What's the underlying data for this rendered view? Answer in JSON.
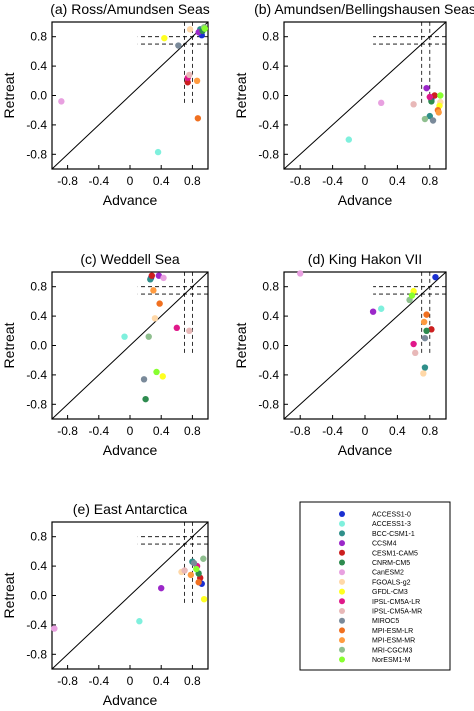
{
  "axis_common": {
    "xlabel": "Advance",
    "ylabel": "Retreat",
    "xlim": [
      -1,
      1
    ],
    "ylim": [
      -1,
      1
    ],
    "x_ticks": [
      "-0.8",
      "-0.4",
      "0",
      "0.4",
      "0.8"
    ],
    "y_ticks": [
      "0.8",
      "0.4",
      "0.0",
      "-0.4",
      "-0.8"
    ],
    "diagonal": true,
    "threshold_dashed_lines": [
      0.7,
      0.8
    ]
  },
  "legend": {
    "placement": "bottom-right",
    "entries": [
      {
        "name": "ACCESS1-0",
        "color": "#1a2fd1"
      },
      {
        "name": "ACCESS1-3",
        "color": "#7ff0dd"
      },
      {
        "name": "BCC-CSM1-1",
        "color": "#2f8f8a"
      },
      {
        "name": "CCSM4",
        "color": "#9b27c9"
      },
      {
        "name": "CESM1-CAM5",
        "color": "#cc1f1f"
      },
      {
        "name": "CNRM-CM5",
        "color": "#2e8b4f"
      },
      {
        "name": "CanESM2",
        "color": "#e8a0e0"
      },
      {
        "name": "FGOALS-g2",
        "color": "#ffd8a8"
      },
      {
        "name": "GFDL-CM3",
        "color": "#ffff20"
      },
      {
        "name": "IPSL-CM5A-LR",
        "color": "#e0188a"
      },
      {
        "name": "IPSL-CM5A-MR",
        "color": "#e8b8b8"
      },
      {
        "name": "MIROC5",
        "color": "#7a8a9a"
      },
      {
        "name": "MPI-ESM-LR",
        "color": "#f07020"
      },
      {
        "name": "MPI-ESM-MR",
        "color": "#ff9b40"
      },
      {
        "name": "MRI-CGCM3",
        "color": "#8fbf8f"
      },
      {
        "name": "NorESM1-M",
        "color": "#88ff30"
      }
    ]
  },
  "chart_data": [
    {
      "type": "scatter",
      "title": "(a) Ross/Amundsen Seas",
      "xlabel": "Advance",
      "ylabel": "Retreat",
      "xlim": [
        -1,
        1
      ],
      "ylim": [
        -1,
        1
      ],
      "points": [
        {
          "model": "ACCESS1-0",
          "x": 0.92,
          "y": 0.82
        },
        {
          "model": "ACCESS1-3",
          "x": 0.36,
          "y": -0.77
        },
        {
          "model": "BCC-CSM1-1",
          "x": 0.9,
          "y": 0.9
        },
        {
          "model": "CCSM4",
          "x": 0.88,
          "y": 0.86
        },
        {
          "model": "CESM1-CAM5",
          "x": 0.74,
          "y": 0.18
        },
        {
          "model": "CNRM-CM5",
          "x": 0.93,
          "y": 0.88
        },
        {
          "model": "CanESM2",
          "x": -0.88,
          "y": -0.08
        },
        {
          "model": "FGOALS-g2",
          "x": 0.77,
          "y": 0.9
        },
        {
          "model": "GFDL-CM3",
          "x": 0.44,
          "y": 0.78
        },
        {
          "model": "IPSL-CM5A-LR",
          "x": 0.74,
          "y": 0.24
        },
        {
          "model": "IPSL-CM5A-MR",
          "x": 0.76,
          "y": 0.28
        },
        {
          "model": "MIROC5",
          "x": 0.62,
          "y": 0.68
        },
        {
          "model": "MPI-ESM-LR",
          "x": 0.87,
          "y": -0.31
        },
        {
          "model": "MPI-ESM-MR",
          "x": 0.86,
          "y": 0.2
        },
        {
          "model": "MRI-CGCM3",
          "x": 0.95,
          "y": 0.93
        },
        {
          "model": "NorESM1-M",
          "x": 0.96,
          "y": 0.91
        }
      ]
    },
    {
      "type": "scatter",
      "title": "(b) Amundsen/Bellingshausen Seas",
      "xlabel": "Advance",
      "ylabel": "Retreat",
      "xlim": [
        -1,
        1
      ],
      "ylim": [
        -1,
        1
      ],
      "points": [
        {
          "model": "ACCESS1-0",
          "x": 0.82,
          "y": -0.06
        },
        {
          "model": "ACCESS1-3",
          "x": -0.2,
          "y": -0.6
        },
        {
          "model": "BCC-CSM1-1",
          "x": 0.8,
          "y": -0.28
        },
        {
          "model": "CCSM4",
          "x": 0.76,
          "y": 0.1
        },
        {
          "model": "CESM1-CAM5",
          "x": 0.86,
          "y": 0.0
        },
        {
          "model": "CNRM-CM5",
          "x": 0.82,
          "y": -0.08
        },
        {
          "model": "CanESM2",
          "x": 0.2,
          "y": -0.1
        },
        {
          "model": "FGOALS-g2",
          "x": 0.93,
          "y": -0.09
        },
        {
          "model": "GFDL-CM3",
          "x": 0.92,
          "y": -0.14
        },
        {
          "model": "IPSL-CM5A-LR",
          "x": 0.8,
          "y": -0.02
        },
        {
          "model": "IPSL-CM5A-MR",
          "x": 0.6,
          "y": -0.12
        },
        {
          "model": "MIROC5",
          "x": 0.84,
          "y": -0.34
        },
        {
          "model": "MPI-ESM-LR",
          "x": 0.9,
          "y": -0.2
        },
        {
          "model": "MPI-ESM-MR",
          "x": 0.91,
          "y": -0.23
        },
        {
          "model": "MRI-CGCM3",
          "x": 0.74,
          "y": -0.32
        },
        {
          "model": "NorESM1-M",
          "x": 0.93,
          "y": 0.0
        }
      ]
    },
    {
      "type": "scatter",
      "title": "(c) Weddell Sea",
      "xlabel": "Advance",
      "ylabel": "Retreat",
      "xlim": [
        -1,
        1
      ],
      "ylim": [
        -1,
        1
      ],
      "points": [
        {
          "model": "ACCESS1-0",
          "x": 0.27,
          "y": 0.92
        },
        {
          "model": "ACCESS1-3",
          "x": -0.07,
          "y": 0.12
        },
        {
          "model": "BCC-CSM1-1",
          "x": 0.26,
          "y": 0.9
        },
        {
          "model": "CCSM4",
          "x": 0.37,
          "y": 0.95
        },
        {
          "model": "CESM1-CAM5",
          "x": 0.28,
          "y": 0.95
        },
        {
          "model": "CNRM-CM5",
          "x": 0.2,
          "y": -0.73
        },
        {
          "model": "CanESM2",
          "x": 0.43,
          "y": 0.92
        },
        {
          "model": "FGOALS-g2",
          "x": 0.32,
          "y": 0.37
        },
        {
          "model": "GFDL-CM3",
          "x": 0.42,
          "y": -0.42
        },
        {
          "model": "IPSL-CM5A-LR",
          "x": 0.6,
          "y": 0.24
        },
        {
          "model": "IPSL-CM5A-MR",
          "x": 0.76,
          "y": 0.2
        },
        {
          "model": "MIROC5",
          "x": 0.18,
          "y": -0.46
        },
        {
          "model": "MPI-ESM-LR",
          "x": 0.38,
          "y": 0.57
        },
        {
          "model": "MPI-ESM-MR",
          "x": 0.3,
          "y": 0.75
        },
        {
          "model": "MRI-CGCM3",
          "x": 0.24,
          "y": 0.12
        },
        {
          "model": "NorESM1-M",
          "x": 0.34,
          "y": -0.36
        }
      ]
    },
    {
      "type": "scatter",
      "title": "(d) King Hakon VII",
      "xlabel": "Advance",
      "ylabel": "Retreat",
      "xlim": [
        -1,
        1
      ],
      "ylim": [
        -1,
        1
      ],
      "points": [
        {
          "model": "ACCESS1-0",
          "x": 0.87,
          "y": 0.93
        },
        {
          "model": "ACCESS1-3",
          "x": 0.2,
          "y": 0.5
        },
        {
          "model": "BCC-CSM1-1",
          "x": 0.74,
          "y": -0.3
        },
        {
          "model": "CCSM4",
          "x": 0.1,
          "y": 0.46
        },
        {
          "model": "CESM1-CAM5",
          "x": 0.82,
          "y": 0.22
        },
        {
          "model": "CNRM-CM5",
          "x": 0.76,
          "y": 0.2
        },
        {
          "model": "CanESM2",
          "x": -0.8,
          "y": 0.98
        },
        {
          "model": "FGOALS-g2",
          "x": 0.72,
          "y": -0.38
        },
        {
          "model": "GFDL-CM3",
          "x": 0.6,
          "y": 0.74
        },
        {
          "model": "IPSL-CM5A-LR",
          "x": 0.6,
          "y": 0.02
        },
        {
          "model": "IPSL-CM5A-MR",
          "x": 0.62,
          "y": -0.1
        },
        {
          "model": "MIROC5",
          "x": 0.74,
          "y": 0.1
        },
        {
          "model": "MPI-ESM-LR",
          "x": 0.76,
          "y": 0.42
        },
        {
          "model": "MPI-ESM-MR",
          "x": 0.73,
          "y": 0.32
        },
        {
          "model": "MRI-CGCM3",
          "x": 0.55,
          "y": 0.62
        },
        {
          "model": "NorESM1-M",
          "x": 0.58,
          "y": 0.68
        }
      ]
    },
    {
      "type": "scatter",
      "title": "(e) East Antarctica",
      "xlabel": "Advance",
      "ylabel": "Retreat",
      "xlim": [
        -1,
        1
      ],
      "ylim": [
        -1,
        1
      ],
      "points": [
        {
          "model": "ACCESS1-0",
          "x": 0.92,
          "y": 0.16
        },
        {
          "model": "ACCESS1-3",
          "x": 0.12,
          "y": -0.35
        },
        {
          "model": "BCC-CSM1-1",
          "x": 0.8,
          "y": 0.46
        },
        {
          "model": "CCSM4",
          "x": 0.4,
          "y": 0.1
        },
        {
          "model": "CESM1-CAM5",
          "x": 0.9,
          "y": 0.24
        },
        {
          "model": "CNRM-CM5",
          "x": 0.88,
          "y": 0.3
        },
        {
          "model": "CanESM2",
          "x": -0.97,
          "y": -0.45
        },
        {
          "model": "FGOALS-g2",
          "x": 0.66,
          "y": 0.32
        },
        {
          "model": "GFDL-CM3",
          "x": 0.95,
          "y": -0.05
        },
        {
          "model": "IPSL-CM5A-LR",
          "x": 0.86,
          "y": 0.4
        },
        {
          "model": "IPSL-CM5A-MR",
          "x": 0.7,
          "y": 0.34
        },
        {
          "model": "MIROC5",
          "x": 0.82,
          "y": 0.44
        },
        {
          "model": "MPI-ESM-LR",
          "x": 0.88,
          "y": 0.18
        },
        {
          "model": "MPI-ESM-MR",
          "x": 0.78,
          "y": 0.28
        },
        {
          "model": "MRI-CGCM3",
          "x": 0.94,
          "y": 0.5
        },
        {
          "model": "NorESM1-M",
          "x": 0.85,
          "y": 0.36
        }
      ]
    }
  ]
}
